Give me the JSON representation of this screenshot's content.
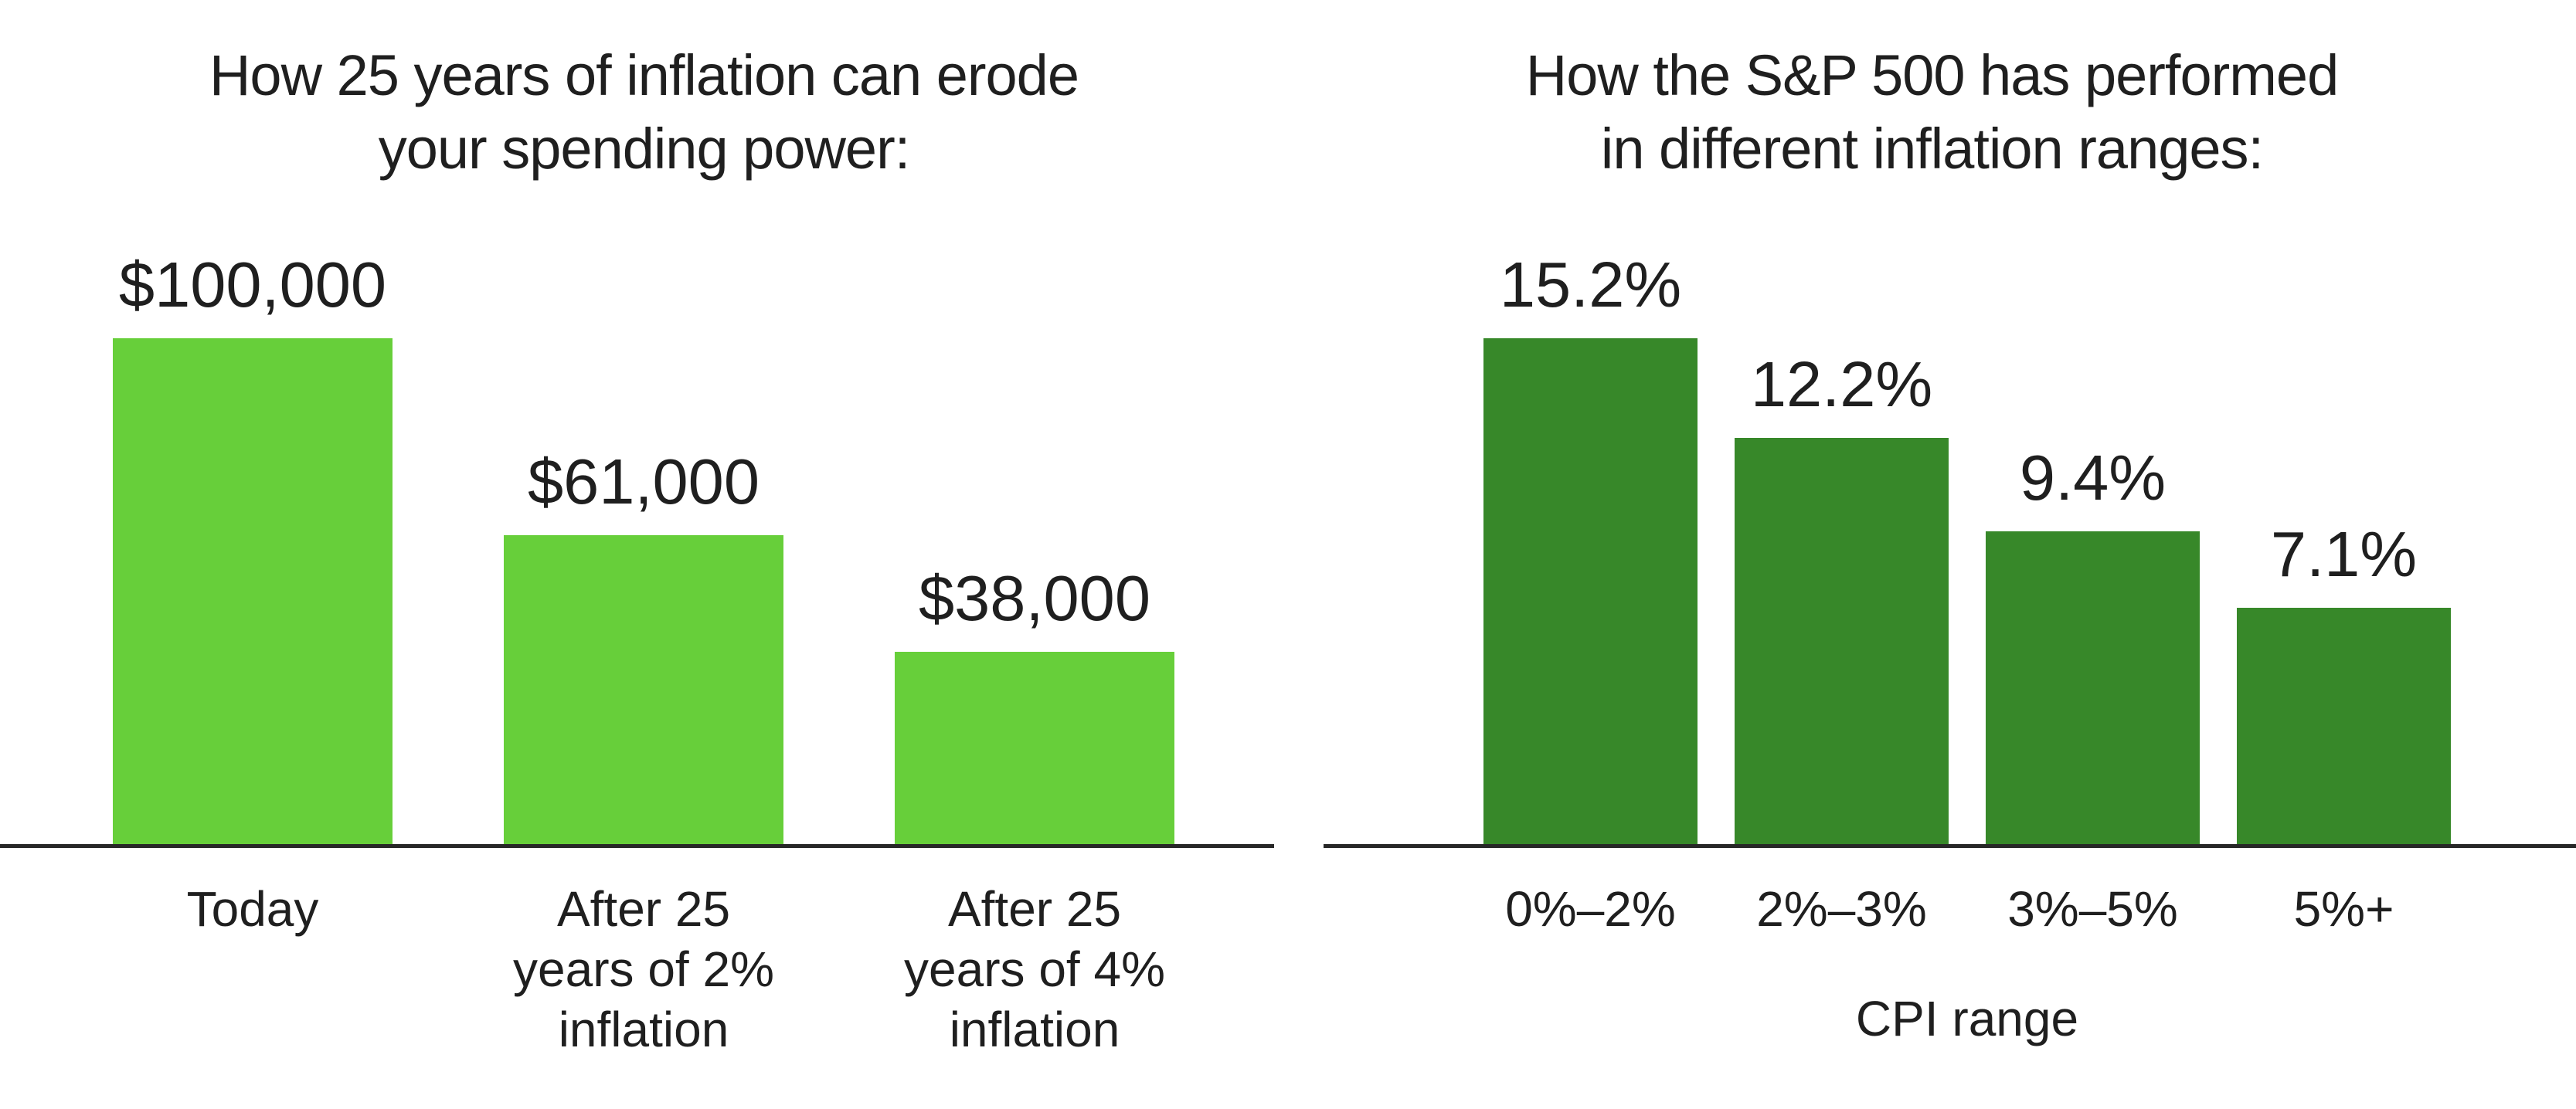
{
  "page": {
    "background": "#ffffff"
  },
  "chart_data": [
    {
      "type": "bar",
      "title": "How 25 years of inflation can erode your spending power:",
      "title_lines": [
        "How 25 years of inflation can erode",
        "your spending power:"
      ],
      "categories": [
        "Today",
        "After 25 years of 2% inflation",
        "After 25 years of 4% inflation"
      ],
      "category_lines": [
        [
          "Today"
        ],
        [
          "After 25",
          "years of 2%",
          "inflation"
        ],
        [
          "After 25",
          "years of 4%",
          "inflation"
        ]
      ],
      "values": [
        100000,
        61000,
        38000
      ],
      "data_labels": [
        "$100,000",
        "$61,000",
        "$38,000"
      ],
      "xlabel": "",
      "ylabel": "",
      "ylim": [
        0,
        100000
      ],
      "bar_color": "#67CF3A",
      "axis_color": "#272727",
      "text_color": "#1f1f1f",
      "grid": false,
      "legend": false,
      "value_labels_position": "above-bars"
    },
    {
      "type": "bar",
      "title": "How the S&P 500 has performed in different inflation ranges:",
      "title_lines": [
        "How the S&P 500 has performed",
        "in different inflation ranges:"
      ],
      "categories": [
        "0%–2%",
        "2%–3%",
        "3%–5%",
        "5%+"
      ],
      "category_lines": [
        [
          "0%–2%"
        ],
        [
          "2%–3%"
        ],
        [
          "3%–5%"
        ],
        [
          "5%+"
        ]
      ],
      "values": [
        15.2,
        12.2,
        9.4,
        7.1
      ],
      "data_labels": [
        "15.2%",
        "12.2%",
        "9.4%",
        "7.1%"
      ],
      "xlabel": "CPI range",
      "ylabel": "",
      "ylim": [
        0,
        15.2
      ],
      "bar_color": "#378829",
      "axis_color": "#272727",
      "text_color": "#1f1f1f",
      "grid": false,
      "legend": false,
      "value_labels_position": "above-bars"
    }
  ]
}
